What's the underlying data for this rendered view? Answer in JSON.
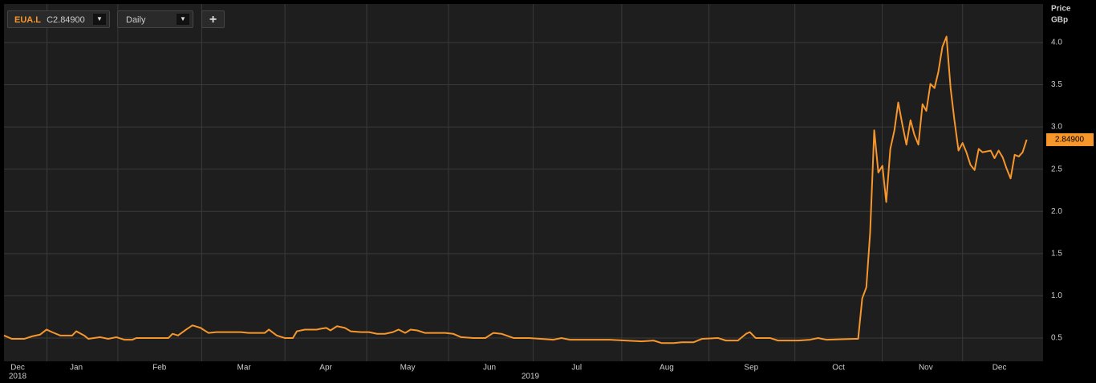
{
  "controls": {
    "symbol": "EUA.L",
    "close_prefix": "C",
    "close": "2.84900",
    "interval": "Daily",
    "add": "+"
  },
  "chart_data": {
    "type": "line",
    "ylabel": "Price",
    "yunit": "GBp",
    "color": "#f7962b",
    "grid": true,
    "x": [
      0,
      2.9,
      7.4,
      10.3,
      13.2,
      15.6,
      17.6,
      20.6,
      25,
      26.5,
      29.4,
      30.9,
      35.3,
      38.2,
      41.2,
      44.1,
      47.1,
      48.5,
      60.3,
      61.8,
      63.8,
      66.8,
      69.1,
      72.1,
      75,
      77.9,
      86.8,
      89.7,
      95.6,
      97.1,
      100,
      102.9,
      105.9,
      107.4,
      110.3,
      114.7,
      116.2,
      118.2,
      119.7,
      122.1,
      125,
      127.1,
      130.9,
      133.8,
      136.8,
      139.7,
      142.6,
      144.7,
      147.1,
      149.1,
      151.5,
      154.4,
      161.8,
      164.7,
      167.6,
      172.1,
      176.5,
      179.4,
      182.4,
      186.8,
      192.6,
      201.5,
      204.4,
      207.4,
      222.1,
      233.8,
      238.2,
      241.2,
      245.6,
      248.5,
      252.9,
      255.9,
      261.8,
      264.7,
      269.1,
      272.1,
      273.5,
      275.6,
      280.9,
      283.8,
      291.2,
      295.6,
      298.5,
      301.5,
      311.8,
      313.2,
      314.7,
      316.2,
      317.6,
      319.1,
      320.6,
      322.1,
      323.5,
      325,
      326.5,
      327.9,
      329.4,
      330.9,
      332.4,
      333.8,
      335.3,
      336.8,
      338.2,
      339.7,
      341.2,
      342.6,
      344.1,
      345.6,
      347.1,
      348.5,
      350,
      351.5,
      352.9,
      354.4,
      355.9,
      357.4,
      358.8,
      361.8,
      363.2,
      364.7,
      366.2,
      367.6,
      369.1,
      370.6,
      372.1,
      373.5,
      375
    ],
    "values": [
      0.53,
      0.49,
      0.49,
      0.52,
      0.54,
      0.6,
      0.57,
      0.53,
      0.53,
      0.58,
      0.53,
      0.49,
      0.51,
      0.49,
      0.51,
      0.48,
      0.48,
      0.5,
      0.5,
      0.55,
      0.53,
      0.6,
      0.65,
      0.62,
      0.56,
      0.57,
      0.57,
      0.56,
      0.56,
      0.6,
      0.53,
      0.5,
      0.5,
      0.58,
      0.6,
      0.6,
      0.61,
      0.62,
      0.59,
      0.64,
      0.62,
      0.58,
      0.57,
      0.57,
      0.55,
      0.55,
      0.57,
      0.6,
      0.56,
      0.6,
      0.59,
      0.56,
      0.56,
      0.55,
      0.51,
      0.5,
      0.5,
      0.56,
      0.55,
      0.5,
      0.5,
      0.48,
      0.5,
      0.48,
      0.48,
      0.46,
      0.47,
      0.44,
      0.44,
      0.45,
      0.45,
      0.49,
      0.5,
      0.47,
      0.47,
      0.55,
      0.57,
      0.5,
      0.5,
      0.47,
      0.47,
      0.48,
      0.5,
      0.48,
      0.49,
      0.49,
      0.97,
      1.1,
      1.75,
      2.96,
      2.46,
      2.54,
      2.11,
      2.74,
      2.96,
      3.29,
      3.03,
      2.79,
      3.08,
      2.91,
      2.79,
      3.27,
      3.19,
      3.51,
      3.46,
      3.65,
      3.95,
      4.07,
      3.46,
      3.08,
      2.72,
      2.81,
      2.7,
      2.55,
      2.49,
      2.74,
      2.7,
      2.72,
      2.63,
      2.72,
      2.64,
      2.51,
      2.39,
      2.67,
      2.65,
      2.7,
      2.849
    ],
    "last_label": {
      "value": 2.849,
      "label": "2.84900"
    },
    "xlim": [
      0,
      381
    ],
    "xticks": [
      {
        "value": 5,
        "label": "Dec"
      },
      {
        "value": 26.5,
        "label": "Jan"
      },
      {
        "value": 57,
        "label": "Feb"
      },
      {
        "value": 88,
        "label": "Mar"
      },
      {
        "value": 118,
        "label": "Apr"
      },
      {
        "value": 148,
        "label": "May"
      },
      {
        "value": 178,
        "label": "Jun"
      },
      {
        "value": 210,
        "label": "Jul"
      },
      {
        "value": 243,
        "label": "Aug"
      },
      {
        "value": 274,
        "label": "Sep"
      },
      {
        "value": 306,
        "label": "Oct"
      },
      {
        "value": 338,
        "label": "Nov"
      },
      {
        "value": 365,
        "label": "Dec"
      }
    ],
    "year_ticks": [
      {
        "value": 5,
        "label": "2018"
      },
      {
        "value": 193,
        "label": "2019"
      }
    ],
    "ylim": [
      0.224,
      4.456
    ],
    "yticks": [
      0.5,
      {
        "value": 1,
        "label": "1.0"
      },
      1.5,
      {
        "value": 2,
        "label": "2.0"
      },
      2.5,
      {
        "value": 3,
        "label": "3.0"
      },
      3.5,
      {
        "value": 4,
        "label": "4.0"
      }
    ]
  }
}
